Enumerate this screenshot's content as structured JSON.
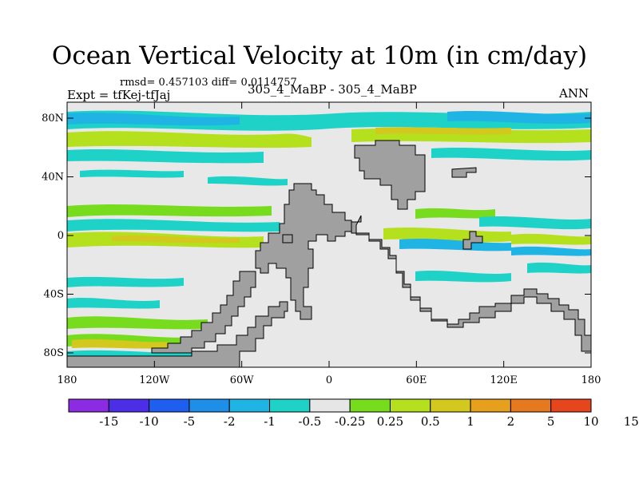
{
  "title": "Ocean Vertical Velocity at 10m (in cm/day)",
  "stats": "rmsd= 0.457103 diff= 0.0114757",
  "left_label": "Expt = tfKej-tfJaj",
  "center_label": "305_4_MaBP - 305_4_MaBP",
  "right_label": "ANN",
  "lat_ticks": [
    {
      "label": "80N",
      "lat": 80
    },
    {
      "label": "40N",
      "lat": 40
    },
    {
      "label": "0",
      "lat": 0
    },
    {
      "label": "40S",
      "lat": -40
    },
    {
      "label": "80S",
      "lat": -80
    }
  ],
  "lon_ticks": [
    {
      "label": "180",
      "lon": -180
    },
    {
      "label": "120W",
      "lon": -120
    },
    {
      "label": "60W",
      "lon": -60
    },
    {
      "label": "0",
      "lon": 0
    },
    {
      "label": "60E",
      "lon": 60
    },
    {
      "label": "120E",
      "lon": 120
    },
    {
      "label": "180",
      "lon": 180
    }
  ],
  "colorbar": {
    "colors": [
      "#8b2be2",
      "#4b2ee6",
      "#1f5ff0",
      "#1e8fe8",
      "#1fb4e4",
      "#1fd2c8",
      "#e6e6e6",
      "#78dc1e",
      "#b4e01e",
      "#d2c81e",
      "#e6a01e",
      "#e6781e",
      "#e6461e"
    ],
    "labels": [
      "-15",
      "-10",
      "-5",
      "-2",
      "-1",
      "-0.5",
      "-0.25",
      "0.25",
      "0.5",
      "1",
      "2",
      "5",
      "10",
      "15"
    ]
  },
  "colors": {
    "land": "#a0a0a0",
    "neutral": "#e8e8e8"
  }
}
